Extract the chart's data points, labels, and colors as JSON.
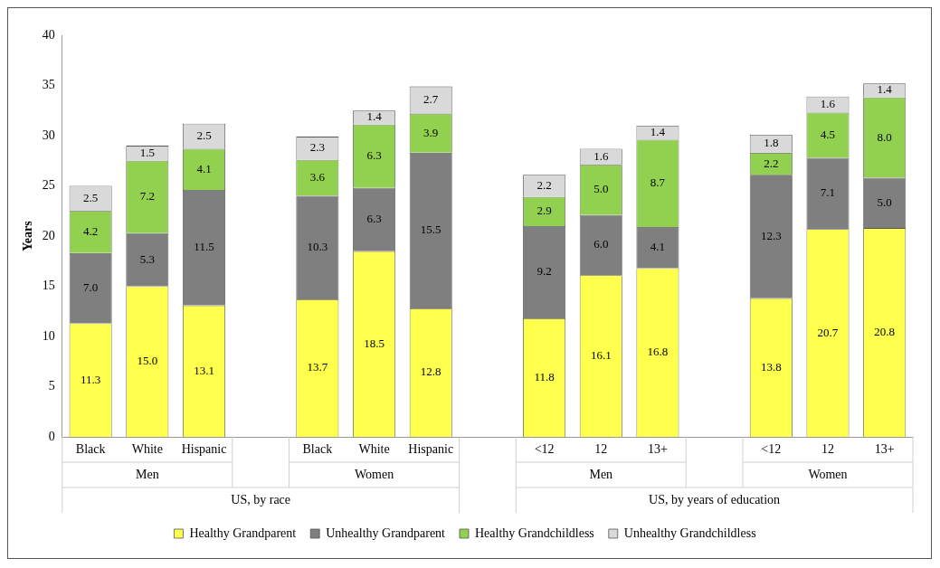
{
  "chart_data": {
    "type": "bar",
    "stacked": true,
    "ylabel": "Years",
    "ylim": [
      0,
      40
    ],
    "yticks": [
      0,
      5,
      10,
      15,
      20,
      25,
      30,
      35,
      40
    ],
    "grid": false,
    "legend": "bottom",
    "categories": [
      "Black",
      "White",
      "Hispanic",
      null,
      "Black",
      "White",
      "Hispanic",
      null,
      "<12",
      "12",
      "13+",
      null,
      "<12",
      "12",
      "13+"
    ],
    "annotations": [
      "Men",
      "Women",
      "Men",
      "Women",
      "US, by race",
      "US, by years of education"
    ],
    "series": [
      {
        "name": "Healthy Grandparent",
        "color": "#ffff4d",
        "values": [
          11.3,
          15.0,
          13.1,
          null,
          13.7,
          18.5,
          12.8,
          null,
          11.8,
          16.1,
          16.8,
          null,
          13.8,
          20.7,
          20.8
        ],
        "value_labels": [
          "11.3",
          "15.0",
          "13.1",
          null,
          "13.7",
          "18.5",
          "12.8",
          null,
          "11.8",
          "16.1",
          "16.8",
          null,
          "13.8",
          "20.7",
          "20.8"
        ]
      },
      {
        "name": "Unhealthy Grandparent",
        "color": "#7f7f7f",
        "values": [
          7.0,
          5.3,
          11.5,
          null,
          10.3,
          6.3,
          15.5,
          null,
          9.2,
          6.0,
          4.1,
          null,
          12.3,
          7.1,
          5.0
        ],
        "value_labels": [
          "7.0",
          "5.3",
          "11.5",
          null,
          "10.3",
          "6.3",
          "15.5",
          null,
          "9.2",
          "6.0",
          "4.1",
          null,
          "12.3",
          "7.1",
          "5.0"
        ]
      },
      {
        "name": "Healthy Grandchildless",
        "color": "#92d050",
        "values": [
          4.2,
          7.2,
          4.1,
          null,
          3.6,
          6.3,
          3.9,
          null,
          2.9,
          5.0,
          8.7,
          null,
          2.2,
          4.5,
          8.0
        ],
        "value_labels": [
          "4.2",
          "7.2",
          "4.1",
          null,
          "3.6",
          "6.3",
          "3.9",
          null,
          "2.9",
          "5.0",
          "8.7",
          null,
          "2.2",
          "4.5",
          "8.0"
        ]
      },
      {
        "name": "Unhealthy Grandchildless",
        "color": "#d9d9d9",
        "values": [
          2.5,
          1.5,
          2.5,
          null,
          2.3,
          1.4,
          2.7,
          null,
          2.2,
          1.6,
          1.4,
          null,
          1.8,
          1.6,
          1.4
        ],
        "value_labels": [
          "2.5",
          "1.5",
          "2.5",
          null,
          "2.3",
          "1.4",
          "2.7",
          null,
          "2.2",
          "1.6",
          "1.4",
          null,
          "1.8",
          "1.6",
          "1.4"
        ]
      }
    ]
  }
}
